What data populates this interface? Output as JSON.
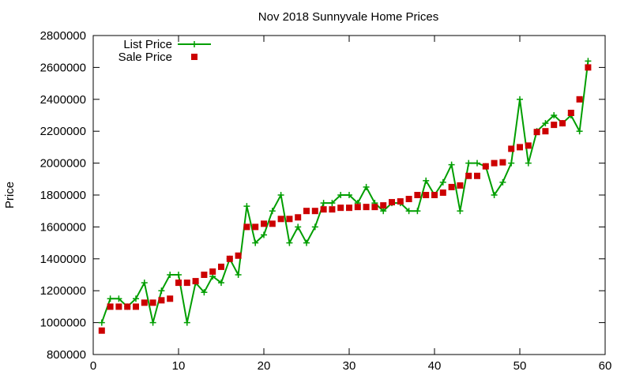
{
  "chart_data": {
    "type": "line",
    "title": "Nov 2018 Sunnyvale Home Prices",
    "xlabel": "",
    "ylabel": "Price",
    "xlim": [
      0,
      60
    ],
    "ylim": [
      800000,
      2800000
    ],
    "x_ticks": [
      "0",
      "10",
      "20",
      "30",
      "40",
      "50",
      "60"
    ],
    "y_ticks": [
      "800000",
      "1000000",
      "1200000",
      "1400000",
      "1600000",
      "1800000",
      "2000000",
      "2200000",
      "2400000",
      "2600000",
      "2800000"
    ],
    "grid": false,
    "legend_position": "top-left",
    "series": [
      {
        "name": "List Price",
        "style": "line-with-plus-markers",
        "color": "#009e00",
        "x": [
          1,
          2,
          3,
          4,
          5,
          6,
          7,
          8,
          9,
          10,
          11,
          12,
          13,
          14,
          15,
          16,
          17,
          18,
          19,
          20,
          21,
          22,
          23,
          24,
          25,
          26,
          27,
          28,
          29,
          30,
          31,
          32,
          33,
          34,
          35,
          36,
          37,
          38,
          39,
          40,
          41,
          42,
          43,
          44,
          45,
          46,
          47,
          48,
          49,
          50,
          51,
          52,
          53,
          54,
          55,
          56,
          57,
          58
        ],
        "values": [
          1000000,
          1150000,
          1150000,
          1100000,
          1150000,
          1250000,
          1000000,
          1200000,
          1300000,
          1300000,
          1000000,
          1250000,
          1190000,
          1290000,
          1250000,
          1400000,
          1300000,
          1730000,
          1500000,
          1550000,
          1700000,
          1800000,
          1500000,
          1600000,
          1500000,
          1600000,
          1750000,
          1750000,
          1800000,
          1800000,
          1750000,
          1850000,
          1750000,
          1700000,
          1750000,
          1750000,
          1700000,
          1700000,
          1890000,
          1800000,
          1880000,
          1990000,
          1700000,
          2000000,
          2000000,
          1980000,
          1800000,
          1880000,
          2000000,
          2400000,
          2000000,
          2200000,
          2250000,
          2300000,
          2250000,
          2300000,
          2200000,
          2640000
        ]
      },
      {
        "name": "Sale Price",
        "style": "square-markers",
        "color": "#cc0000",
        "x": [
          1,
          2,
          3,
          4,
          5,
          6,
          7,
          8,
          9,
          10,
          11,
          12,
          13,
          14,
          15,
          16,
          17,
          18,
          19,
          20,
          21,
          22,
          23,
          24,
          25,
          26,
          27,
          28,
          29,
          30,
          31,
          32,
          33,
          34,
          35,
          36,
          37,
          38,
          39,
          40,
          41,
          42,
          43,
          44,
          45,
          46,
          47,
          48,
          49,
          50,
          51,
          52,
          53,
          54,
          55,
          56,
          57,
          58
        ],
        "values": [
          950000,
          1100000,
          1100000,
          1100000,
          1100000,
          1125000,
          1125000,
          1140000,
          1150000,
          1250000,
          1250000,
          1260000,
          1300000,
          1320000,
          1350000,
          1400000,
          1420000,
          1600000,
          1600000,
          1620000,
          1620000,
          1650000,
          1650000,
          1660000,
          1700000,
          1700000,
          1710000,
          1710000,
          1720000,
          1720000,
          1725000,
          1725000,
          1725000,
          1735000,
          1755000,
          1760000,
          1775000,
          1800000,
          1800000,
          1800000,
          1815000,
          1850000,
          1860000,
          1920000,
          1920000,
          1980000,
          2000000,
          2005000,
          2090000,
          2100000,
          2110000,
          2195000,
          2200000,
          2240000,
          2250000,
          2315000,
          2400000,
          2600000
        ]
      }
    ]
  }
}
